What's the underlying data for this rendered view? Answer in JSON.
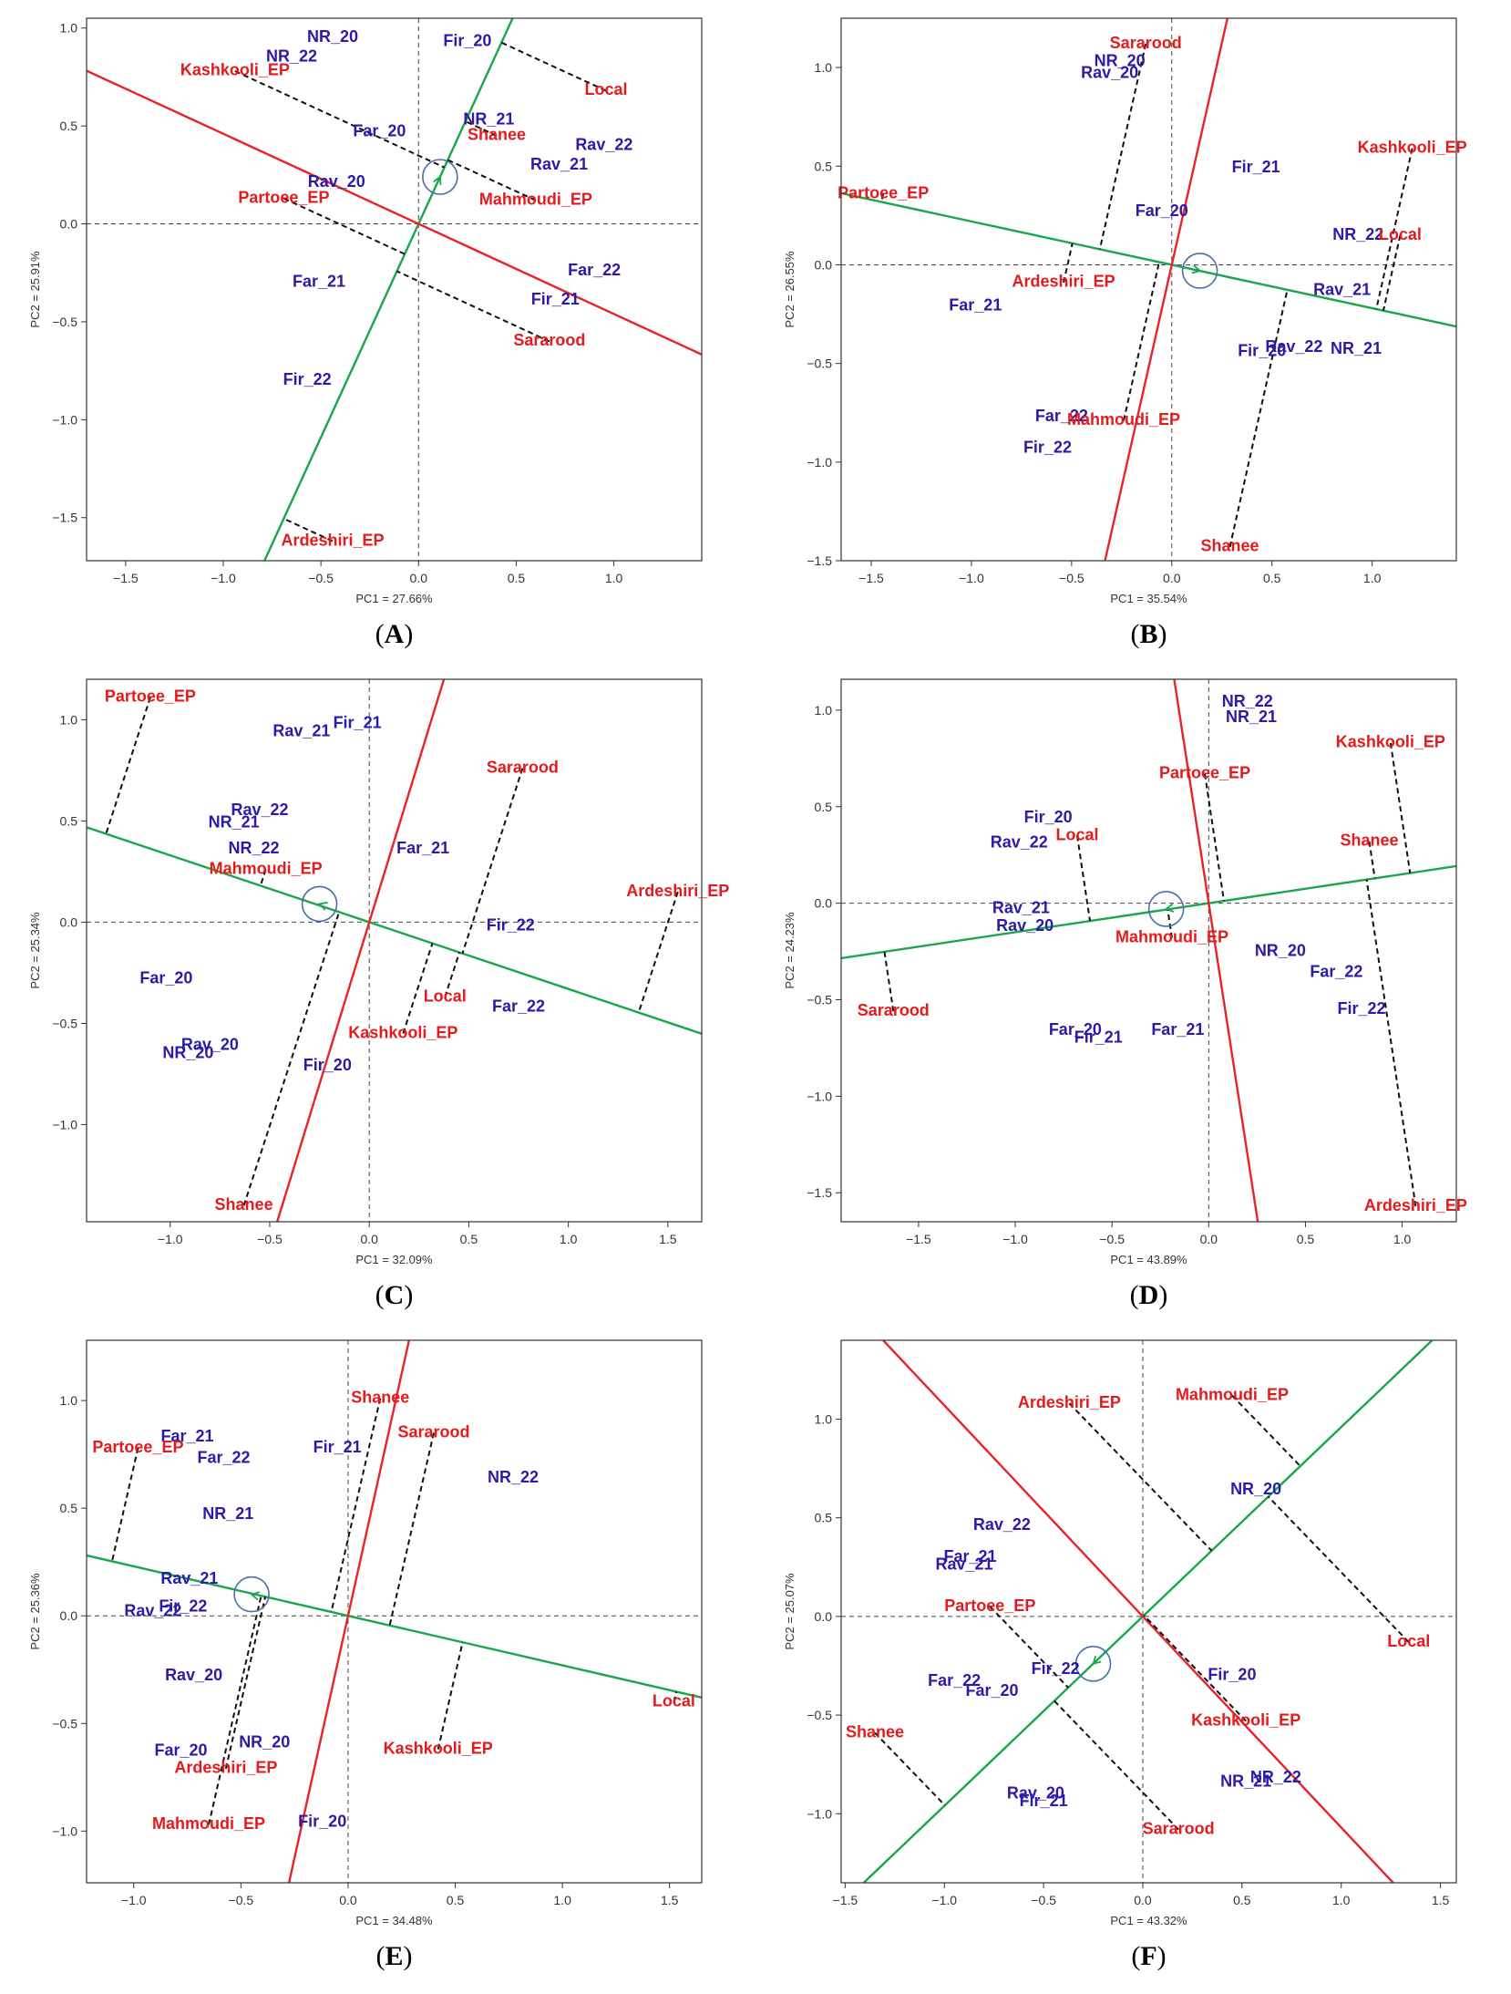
{
  "colors": {
    "env": "#2a1ba8",
    "gen": "#e41a1c",
    "ata": "#1aa64a",
    "ato": "#e8232a"
  },
  "chart_data": [
    {
      "id": "A",
      "type": "scatter",
      "panel_label": "A",
      "xlabel": "PC1 = 27.66%",
      "ylabel": "PC2 = 25.91%",
      "xlim": [
        -1.7,
        1.45
      ],
      "ylim": [
        -1.72,
        1.05
      ],
      "xticks": [
        -1.5,
        -1.0,
        -0.5,
        0.0,
        0.5,
        1.0
      ],
      "yticks": [
        -1.5,
        -1.0,
        -0.5,
        0.0,
        0.5,
        1.0
      ],
      "mean_marker": [
        0.11,
        0.24
      ],
      "average_tester_axis": {
        "slope": 2.18
      },
      "ato_axis": {
        "slope": -0.46
      },
      "environments": [
        {
          "label": "NR_20",
          "x": -0.44,
          "y": 0.95
        },
        {
          "label": "NR_22",
          "x": -0.65,
          "y": 0.85
        },
        {
          "label": "Fir_20",
          "x": 0.25,
          "y": 0.93
        },
        {
          "label": "Far_20",
          "x": -0.2,
          "y": 0.47
        },
        {
          "label": "NR_21",
          "x": 0.36,
          "y": 0.53
        },
        {
          "label": "Rav_22",
          "x": 0.95,
          "y": 0.4
        },
        {
          "label": "Rav_21",
          "x": 0.72,
          "y": 0.3
        },
        {
          "label": "Rav_20",
          "x": -0.42,
          "y": 0.21
        },
        {
          "label": "Far_22",
          "x": 0.9,
          "y": -0.24
        },
        {
          "label": "Fir_21",
          "x": 0.7,
          "y": -0.39
        },
        {
          "label": "Far_21",
          "x": -0.51,
          "y": -0.3
        },
        {
          "label": "Fir_22",
          "x": -0.57,
          "y": -0.8
        }
      ],
      "genotypes": [
        {
          "label": "Kashkooli_EP",
          "x": -0.94,
          "y": 0.78
        },
        {
          "label": "Local",
          "x": 0.96,
          "y": 0.68
        },
        {
          "label": "Shanee",
          "x": 0.4,
          "y": 0.45
        },
        {
          "label": "Mahmoudi_EP",
          "x": 0.6,
          "y": 0.12
        },
        {
          "label": "Partoee_EP",
          "x": -0.69,
          "y": 0.13
        },
        {
          "label": "Sararood",
          "x": 0.67,
          "y": -0.6
        },
        {
          "label": "Ardeshiri_EP",
          "x": -0.44,
          "y": -1.62
        }
      ]
    },
    {
      "id": "B",
      "type": "scatter",
      "panel_label": "B",
      "xlabel": "PC1 = 35.54%",
      "ylabel": "PC2 = 26.55%",
      "xlim": [
        -1.65,
        1.42
      ],
      "ylim": [
        -1.5,
        1.25
      ],
      "xticks": [
        -1.5,
        -1.0,
        -0.5,
        0.0,
        0.5,
        1.0
      ],
      "yticks": [
        -1.5,
        -1.0,
        -0.5,
        0.0,
        0.5,
        1.0
      ],
      "mean_marker": [
        0.14,
        -0.03
      ],
      "average_tester_axis": {
        "slope": -0.22
      },
      "ato_axis": {
        "slope": 4.5
      },
      "environments": [
        {
          "label": "NR_20",
          "x": -0.26,
          "y": 1.03
        },
        {
          "label": "Rav_20",
          "x": -0.31,
          "y": 0.97
        },
        {
          "label": "Fir_21",
          "x": 0.42,
          "y": 0.49
        },
        {
          "label": "Far_20",
          "x": -0.05,
          "y": 0.27
        },
        {
          "label": "NR_22",
          "x": 0.93,
          "y": 0.15
        },
        {
          "label": "Far_21",
          "x": -0.98,
          "y": -0.21
        },
        {
          "label": "Rav_21",
          "x": 0.85,
          "y": -0.13
        },
        {
          "label": "Rav_22",
          "x": 0.61,
          "y": -0.42
        },
        {
          "label": "Fir_20",
          "x": 0.45,
          "y": -0.44
        },
        {
          "label": "NR_21",
          "x": 0.92,
          "y": -0.43
        },
        {
          "label": "Far_22",
          "x": -0.55,
          "y": -0.77
        },
        {
          "label": "Fir_22",
          "x": -0.62,
          "y": -0.93
        }
      ],
      "genotypes": [
        {
          "label": "Sararood",
          "x": -0.13,
          "y": 1.12
        },
        {
          "label": "Kashkooli_EP",
          "x": 1.2,
          "y": 0.59
        },
        {
          "label": "Partoee_EP",
          "x": -1.44,
          "y": 0.36
        },
        {
          "label": "Local",
          "x": 1.14,
          "y": 0.15
        },
        {
          "label": "Ardeshiri_EP",
          "x": -0.54,
          "y": -0.09
        },
        {
          "label": "Mahmoudi_EP",
          "x": -0.24,
          "y": -0.79
        },
        {
          "label": "Shanee",
          "x": 0.29,
          "y": -1.43
        }
      ]
    },
    {
      "id": "C",
      "type": "scatter",
      "panel_label": "C",
      "xlabel": "PC1 = 32.09%",
      "ylabel": "PC2 = 25.34%",
      "xlim": [
        -1.42,
        1.67
      ],
      "ylim": [
        -1.48,
        1.2
      ],
      "xticks": [
        -1.0,
        -0.5,
        0.0,
        0.5,
        1.0,
        1.5
      ],
      "yticks": [
        -1.0,
        -0.5,
        0.0,
        0.5,
        1.0
      ],
      "mean_marker": [
        -0.25,
        0.09
      ],
      "average_tester_axis": {
        "slope": -0.33
      },
      "ato_axis": {
        "slope": 3.2
      },
      "environments": [
        {
          "label": "Rav_21",
          "x": -0.34,
          "y": 0.94
        },
        {
          "label": "Fir_21",
          "x": -0.06,
          "y": 0.98
        },
        {
          "label": "Rav_22",
          "x": -0.55,
          "y": 0.55
        },
        {
          "label": "NR_21",
          "x": -0.68,
          "y": 0.49
        },
        {
          "label": "NR_22",
          "x": -0.58,
          "y": 0.36
        },
        {
          "label": "Far_21",
          "x": 0.27,
          "y": 0.36
        },
        {
          "label": "Fir_22",
          "x": 0.71,
          "y": -0.02
        },
        {
          "label": "Far_20",
          "x": -1.02,
          "y": -0.28
        },
        {
          "label": "Far_22",
          "x": 0.75,
          "y": -0.42
        },
        {
          "label": "Rav_20",
          "x": -0.8,
          "y": -0.61
        },
        {
          "label": "NR_20",
          "x": -0.91,
          "y": -0.65
        },
        {
          "label": "Fir_20",
          "x": -0.21,
          "y": -0.71
        }
      ],
      "genotypes": [
        {
          "label": "Partoee_EP",
          "x": -1.1,
          "y": 1.11
        },
        {
          "label": "Sararood",
          "x": 0.77,
          "y": 0.76
        },
        {
          "label": "Mahmoudi_EP",
          "x": -0.52,
          "y": 0.26
        },
        {
          "label": "Ardeshiri_EP",
          "x": 1.55,
          "y": 0.15
        },
        {
          "label": "Local",
          "x": 0.38,
          "y": -0.37
        },
        {
          "label": "Kashkooli_EP",
          "x": 0.17,
          "y": -0.55
        },
        {
          "label": "Shanee",
          "x": -0.63,
          "y": -1.4
        }
      ]
    },
    {
      "id": "D",
      "type": "scatter",
      "panel_label": "D",
      "xlabel": "PC1 = 43.89%",
      "ylabel": "PC2 = 24.23%",
      "xlim": [
        -1.9,
        1.28
      ],
      "ylim": [
        -1.65,
        1.16
      ],
      "xticks": [
        -1.5,
        -1.0,
        -0.5,
        0.0,
        0.5,
        1.0
      ],
      "yticks": [
        -1.5,
        -1.0,
        -0.5,
        0.0,
        0.5,
        1.0
      ],
      "mean_marker": [
        -0.22,
        -0.03
      ],
      "average_tester_axis": {
        "slope": 0.15
      },
      "ato_axis": {
        "slope": -6.5
      },
      "environments": [
        {
          "label": "NR_22",
          "x": 0.2,
          "y": 1.04
        },
        {
          "label": "NR_21",
          "x": 0.22,
          "y": 0.96
        },
        {
          "label": "Fir_20",
          "x": -0.83,
          "y": 0.44
        },
        {
          "label": "Rav_22",
          "x": -0.98,
          "y": 0.31
        },
        {
          "label": "Rav_21",
          "x": -0.97,
          "y": -0.03
        },
        {
          "label": "Rav_20",
          "x": -0.95,
          "y": -0.12
        },
        {
          "label": "NR_20",
          "x": 0.37,
          "y": -0.25
        },
        {
          "label": "Far_22",
          "x": 0.66,
          "y": -0.36
        },
        {
          "label": "Fir_22",
          "x": 0.79,
          "y": -0.55
        },
        {
          "label": "Far_20",
          "x": -0.69,
          "y": -0.66
        },
        {
          "label": "Fir_21",
          "x": -0.57,
          "y": -0.7
        },
        {
          "label": "Far_21",
          "x": -0.16,
          "y": -0.66
        }
      ],
      "genotypes": [
        {
          "label": "Kashkooli_EP",
          "x": 0.94,
          "y": 0.83
        },
        {
          "label": "Partoee_EP",
          "x": -0.02,
          "y": 0.67
        },
        {
          "label": "Shanee",
          "x": 0.83,
          "y": 0.32
        },
        {
          "label": "Local",
          "x": -0.68,
          "y": 0.35
        },
        {
          "label": "Mahmoudi_EP",
          "x": -0.19,
          "y": -0.18
        },
        {
          "label": "Sararood",
          "x": -1.63,
          "y": -0.56
        },
        {
          "label": "Ardeshiri_EP",
          "x": 1.07,
          "y": -1.57
        }
      ]
    },
    {
      "id": "E",
      "type": "scatter",
      "panel_label": "E",
      "xlabel": "PC1 = 34.48%",
      "ylabel": "PC2 = 25.36%",
      "xlim": [
        -1.22,
        1.65
      ],
      "ylim": [
        -1.24,
        1.28
      ],
      "xticks": [
        -1.0,
        -0.5,
        0.0,
        0.5,
        1.0,
        1.5
      ],
      "yticks": [
        -1.0,
        -0.5,
        0.0,
        0.5,
        1.0
      ],
      "mean_marker": [
        -0.45,
        0.1
      ],
      "average_tester_axis": {
        "slope": -0.23
      },
      "ato_axis": {
        "slope": 4.5
      },
      "environments": [
        {
          "label": "Far_21",
          "x": -0.75,
          "y": 0.83
        },
        {
          "label": "Fir_21",
          "x": -0.05,
          "y": 0.78
        },
        {
          "label": "Far_22",
          "x": -0.58,
          "y": 0.73
        },
        {
          "label": "NR_22",
          "x": 0.77,
          "y": 0.64
        },
        {
          "label": "NR_21",
          "x": -0.56,
          "y": 0.47
        },
        {
          "label": "Rav_21",
          "x": -0.74,
          "y": 0.17
        },
        {
          "label": "Fir_22",
          "x": -0.77,
          "y": 0.04
        },
        {
          "label": "Rav_22",
          "x": -0.91,
          "y": 0.02
        },
        {
          "label": "Rav_20",
          "x": -0.72,
          "y": -0.28
        },
        {
          "label": "Far_20",
          "x": -0.78,
          "y": -0.63
        },
        {
          "label": "NR_20",
          "x": -0.39,
          "y": -0.59
        },
        {
          "label": "Fir_20",
          "x": -0.12,
          "y": -0.96
        }
      ],
      "genotypes": [
        {
          "label": "Shanee",
          "x": 0.15,
          "y": 1.01
        },
        {
          "label": "Sararood",
          "x": 0.4,
          "y": 0.85
        },
        {
          "label": "Partoee_EP",
          "x": -0.98,
          "y": 0.78
        },
        {
          "label": "Local",
          "x": 1.52,
          "y": -0.4
        },
        {
          "label": "Kashkooli_EP",
          "x": 0.42,
          "y": -0.62
        },
        {
          "label": "Ardeshiri_EP",
          "x": -0.57,
          "y": -0.71
        },
        {
          "label": "Mahmoudi_EP",
          "x": -0.65,
          "y": -0.97
        }
      ]
    },
    {
      "id": "F",
      "type": "scatter",
      "panel_label": "F",
      "xlabel": "PC1 = 43.32%",
      "ylabel": "PC2 = 25.07%",
      "xlim": [
        -1.52,
        1.58
      ],
      "ylim": [
        -1.35,
        1.4
      ],
      "xticks": [
        -1.5,
        -1.0,
        -0.5,
        0.0,
        0.5,
        1.0,
        1.5
      ],
      "yticks": [
        -1.0,
        -0.5,
        0.0,
        0.5,
        1.0
      ],
      "mean_marker": [
        -0.25,
        -0.24
      ],
      "average_tester_axis": {
        "slope": 0.96
      },
      "ato_axis": {
        "slope": -1.07
      },
      "environments": [
        {
          "label": "NR_20",
          "x": 0.57,
          "y": 0.64
        },
        {
          "label": "Rav_22",
          "x": -0.71,
          "y": 0.46
        },
        {
          "label": "Far_21",
          "x": -0.87,
          "y": 0.3
        },
        {
          "label": "Rav_21",
          "x": -0.9,
          "y": 0.26
        },
        {
          "label": "Fir_22",
          "x": -0.44,
          "y": -0.27
        },
        {
          "label": "Far_22",
          "x": -0.95,
          "y": -0.33
        },
        {
          "label": "Far_20",
          "x": -0.76,
          "y": -0.38
        },
        {
          "label": "Fir_20",
          "x": 0.45,
          "y": -0.3
        },
        {
          "label": "NR_22",
          "x": 0.67,
          "y": -0.82
        },
        {
          "label": "NR_21",
          "x": 0.52,
          "y": -0.84
        },
        {
          "label": "Rav_20",
          "x": -0.54,
          "y": -0.9
        },
        {
          "label": "Fir_21",
          "x": -0.5,
          "y": -0.94
        }
      ],
      "genotypes": [
        {
          "label": "Ardeshiri_EP",
          "x": -0.37,
          "y": 1.08
        },
        {
          "label": "Mahmoudi_EP",
          "x": 0.45,
          "y": 1.12
        },
        {
          "label": "Local",
          "x": 1.34,
          "y": -0.13
        },
        {
          "label": "Partoee_EP",
          "x": -0.77,
          "y": 0.05
        },
        {
          "label": "Kashkooli_EP",
          "x": 0.52,
          "y": -0.53
        },
        {
          "label": "Shanee",
          "x": -1.35,
          "y": -0.59
        },
        {
          "label": "Sararood",
          "x": 0.18,
          "y": -1.08
        }
      ]
    }
  ]
}
